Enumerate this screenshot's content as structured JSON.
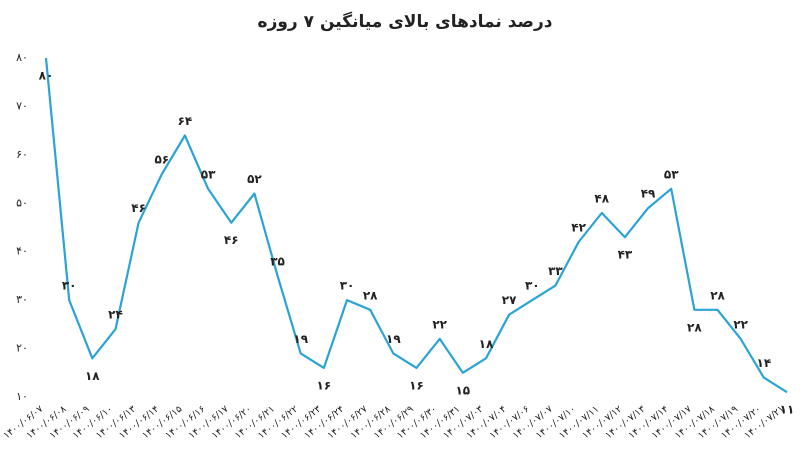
{
  "chart_data": {
    "type": "line",
    "title": "درصد نمادهای بالای میانگین ۷ روزه",
    "categories": [
      "۱۴۰۰/۰۶/۰۷",
      "۱۴۰۰/۰۶/۰۸",
      "۱۴۰۰/۰۶/۰۹",
      "۱۴۰۰/۰۶/۱۰",
      "۱۴۰۰/۰۶/۱۳",
      "۱۴۰۰/۰۶/۱۴",
      "۱۴۰۰/۰۶/۱۵",
      "۱۴۰۰/۰۶/۱۶",
      "۱۴۰۰/۰۶/۱۷",
      "۱۴۰۰/۰۶/۲۰",
      "۱۴۰۰/۰۶/۲۱",
      "۱۴۰۰/۰۶/۲۲",
      "۱۴۰۰/۰۶/۲۳",
      "۱۴۰۰/۰۶/۲۴",
      "۱۴۰۰/۰۶/۲۷",
      "۱۴۰۰/۰۶/۲۸",
      "۱۴۰۰/۰۶/۲۹",
      "۱۴۰۰/۰۶/۳۰",
      "۱۴۰۰/۰۶/۳۱",
      "۱۴۰۰/۰۷/۰۳",
      "۱۴۰۰/۰۷/۰۴",
      "۱۴۰۰/۰۷/۰۶",
      "۱۴۰۰/۰۷/۰۷",
      "۱۴۰۰/۰۷/۱۰",
      "۱۴۰۰/۰۷/۱۱",
      "۱۴۰۰/۰۷/۱۲",
      "۱۴۰۰/۰۷/۱۳",
      "۱۴۰۰/۰۷/۱۴",
      "۱۴۰۰/۰۷/۱۷",
      "۱۴۰۰/۰۷/۱۸",
      "۱۴۰۰/۰۷/۱۹",
      "۱۴۰۰/۰۷/۲۰",
      "۱۴۰۰/۰۷/۲۱"
    ],
    "values": [
      80,
      30,
      18,
      24,
      46,
      56,
      64,
      53,
      46,
      52,
      35,
      19,
      16,
      30,
      28,
      19,
      16,
      22,
      15,
      18,
      27,
      30,
      33,
      42,
      48,
      43,
      49,
      53,
      28,
      28,
      22,
      14,
      11
    ],
    "value_labels": [
      "۸۰",
      "۳۰",
      "۱۸",
      "۲۴",
      "۴۶",
      "۵۶",
      "۶۴",
      "۵۳",
      "۴۶",
      "۵۲",
      "۳۵",
      "۱۹",
      "۱۶",
      "۳۰",
      "۲۸",
      "۱۹",
      "۱۶",
      "۲۲",
      "۱۵",
      "۱۸",
      "۲۷",
      "۳۰",
      "۳۳",
      "۴۲",
      "۴۸",
      "۴۳",
      "۴۹",
      "۵۳",
      "۲۸",
      "۲۸",
      "۲۲",
      "۱۴",
      "۱۱"
    ],
    "color": "#2ba3d4",
    "ylim": [
      10,
      80
    ],
    "yticks": [
      {
        "value": 10,
        "label": "۱۰"
      },
      {
        "value": 20,
        "label": "۲۰"
      },
      {
        "value": 30,
        "label": "۳۰"
      },
      {
        "value": 40,
        "label": "۴۰"
      },
      {
        "value": 50,
        "label": "۵۰"
      },
      {
        "value": 60,
        "label": "۶۰"
      },
      {
        "value": 70,
        "label": "۷۰"
      },
      {
        "value": 80,
        "label": "۸۰"
      }
    ],
    "grid": false
  }
}
